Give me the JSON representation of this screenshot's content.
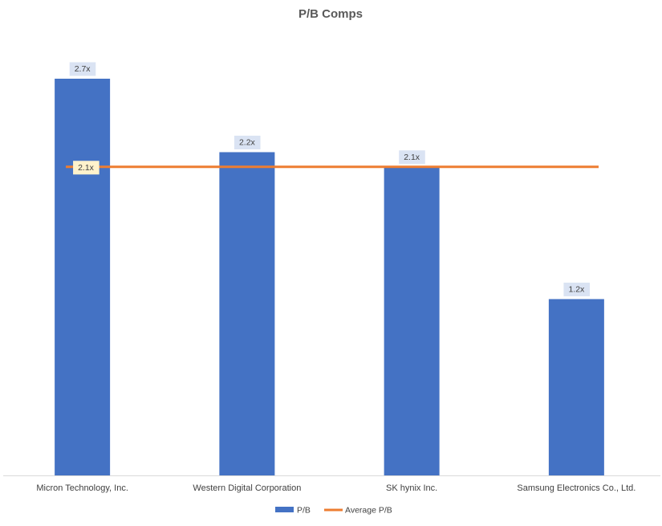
{
  "chart_data": {
    "type": "bar",
    "title": "P/B Comps",
    "xlabel": "",
    "ylabel": "",
    "categories": [
      "Micron Technology, Inc.",
      "Western Digital Corporation",
      "SK hynix Inc.",
      "Samsung Electronics Co., Ltd."
    ],
    "series": [
      {
        "name": "P/B",
        "kind": "bar",
        "color": "#4472C4",
        "values": [
          2.7,
          2.2,
          2.1,
          1.2
        ],
        "labels": [
          "2.7x",
          "2.2x",
          "2.1x",
          "1.2x"
        ]
      },
      {
        "name": "Average P/B",
        "kind": "line",
        "color": "#ED7D31",
        "values": [
          2.1,
          2.1,
          2.1,
          2.1
        ],
        "labels": [
          "2.1x"
        ]
      }
    ],
    "ylim": [
      0,
      2.7
    ],
    "grid": false,
    "legend": "bottom",
    "data_label_bg": "#DAE3F3",
    "avg_label_bg": "#FFF2CC",
    "axis_color": "#D9D9D9"
  }
}
